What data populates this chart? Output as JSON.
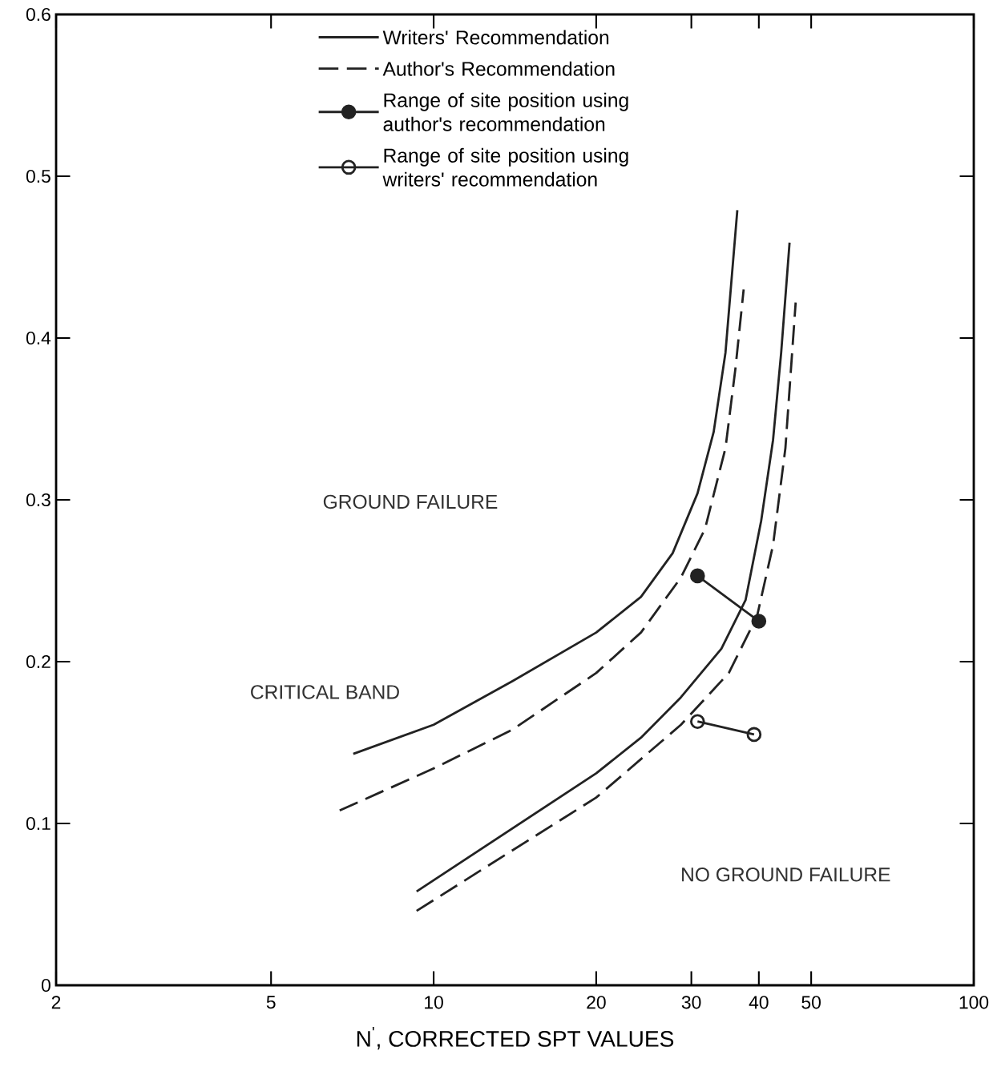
{
  "chart_data": {
    "type": "line",
    "xlabel": "N$^{'}$, CORRECTED SPT VALUES",
    "log": "x",
    "xlim": [
      2,
      100
    ],
    "xticks": [
      2,
      5,
      10,
      20,
      30,
      40,
      50,
      100
    ],
    "ylim": [
      0,
      0.6
    ],
    "yticks": [
      0,
      0.1,
      0.2,
      0.3,
      0.4,
      0.5,
      0.6
    ],
    "grid": false,
    "legend": "top",
    "series": [
      {
        "name": "Writers' Recommendation",
        "color": "#222222",
        "line_style": "solid",
        "marker": "none",
        "x": [
          7.1,
          10,
          14,
          20,
          24.2,
          27.7,
          30.8,
          33,
          34.7,
          36.5
        ],
        "values": [
          0.143,
          0.161,
          0.188,
          0.218,
          0.24,
          0.267,
          0.304,
          0.342,
          0.391,
          0.479
        ]
      },
      {
        "name": "Author's Recommendation",
        "color": "#222222",
        "line_style": "dashed",
        "marker": "none",
        "x": [
          6.7,
          10,
          14,
          20,
          24.2,
          28.7,
          31.8,
          34.7,
          36.2,
          37.5
        ],
        "values": [
          0.108,
          0.134,
          0.158,
          0.193,
          0.218,
          0.252,
          0.282,
          0.332,
          0.381,
          0.43
        ]
      },
      {
        "name": "Range of site position using author's recommendation",
        "color": "#222222",
        "line_style": "solid",
        "marker": "circle",
        "x": [
          30.8,
          40
        ],
        "values": [
          0.253,
          0.225
        ]
      },
      {
        "name": "Range of site position using writers' recommendation",
        "color": "#222222",
        "line_style": "solid",
        "marker": "circle-open",
        "x": [
          30.8,
          39.2
        ],
        "values": [
          0.163,
          0.155
        ]
      },
      {
        "color": "#222222",
        "line_style": "solid",
        "marker": "none",
        "x": [
          9.3,
          20,
          24.2,
          28.7,
          34.1,
          37.8,
          40.4,
          42.5,
          44,
          45.6
        ],
        "values": [
          0.058,
          0.131,
          0.153,
          0.178,
          0.208,
          0.238,
          0.287,
          0.337,
          0.391,
          0.459
        ]
      },
      {
        "color": "#222222",
        "line_style": "dashed",
        "marker": "none",
        "x": [
          9.3,
          20,
          28.7,
          35.2,
          39.7,
          42.5,
          44.8,
          46.8
        ],
        "values": [
          0.046,
          0.116,
          0.161,
          0.193,
          0.228,
          0.272,
          0.332,
          0.422
        ]
      }
    ],
    "annotations": [
      "GROUND FAILURE",
      "CRITICAL BAND",
      "NO GROUND FAILURE"
    ]
  }
}
